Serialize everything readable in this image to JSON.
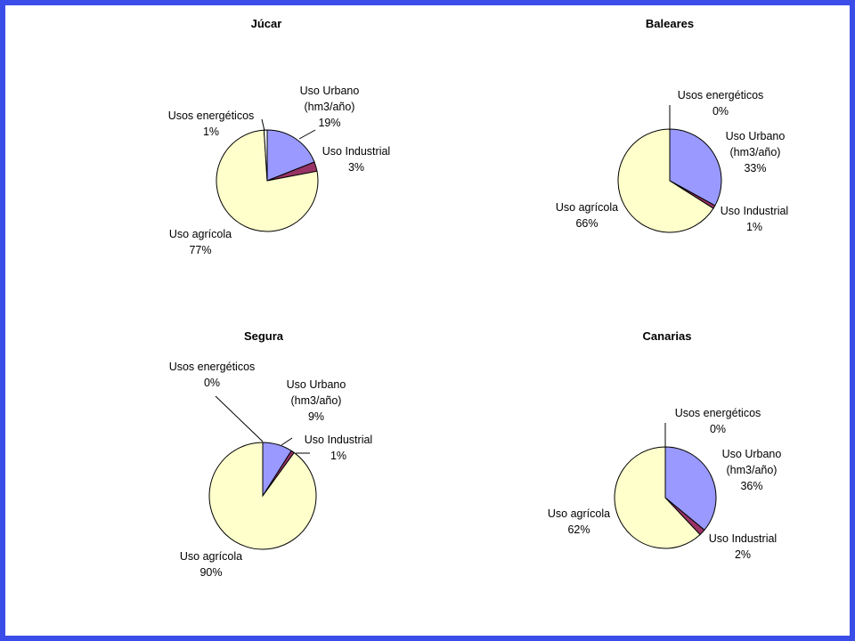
{
  "colors": {
    "frame": "#3b4de8",
    "background": "#ffffff",
    "uso_urbano": "#9999ff",
    "uso_industrial": "#993366",
    "uso_agricola": "#ffffcc",
    "usos_energeticos": "#ffffff",
    "outline": "#000000"
  },
  "chart_data": [
    {
      "type": "pie",
      "title": "Júcar",
      "slices": [
        {
          "label": "Uso Urbano\n(hm3/año)",
          "percent_label": "19%",
          "value": 19
        },
        {
          "label": "Uso Industrial",
          "percent_label": "3%",
          "value": 3
        },
        {
          "label": "Uso agrícola",
          "percent_label": "77%",
          "value": 77
        },
        {
          "label": "Usos energéticos",
          "percent_label": "1%",
          "value": 1
        }
      ]
    },
    {
      "type": "pie",
      "title": "Baleares",
      "slices": [
        {
          "label": "Uso Urbano\n(hm3/año)",
          "percent_label": "33%",
          "value": 33
        },
        {
          "label": "Uso Industrial",
          "percent_label": "1%",
          "value": 1
        },
        {
          "label": "Uso agrícola",
          "percent_label": "66%",
          "value": 66
        },
        {
          "label": "Usos energéticos",
          "percent_label": "0%",
          "value": 0
        }
      ]
    },
    {
      "type": "pie",
      "title": "Segura",
      "slices": [
        {
          "label": "Uso Urbano\n(hm3/año)",
          "percent_label": "9%",
          "value": 9
        },
        {
          "label": "Uso Industrial",
          "percent_label": "1%",
          "value": 1
        },
        {
          "label": "Uso agrícola",
          "percent_label": "90%",
          "value": 90
        },
        {
          "label": "Usos energéticos",
          "percent_label": "0%",
          "value": 0
        }
      ]
    },
    {
      "type": "pie",
      "title": "Canarias",
      "slices": [
        {
          "label": "Uso Urbano\n(hm3/año)",
          "percent_label": "36%",
          "value": 36
        },
        {
          "label": "Uso Industrial",
          "percent_label": "2%",
          "value": 2
        },
        {
          "label": "Uso agrícola",
          "percent_label": "62%",
          "value": 62
        },
        {
          "label": "Usos energéticos",
          "percent_label": "0%",
          "value": 0
        }
      ]
    }
  ]
}
